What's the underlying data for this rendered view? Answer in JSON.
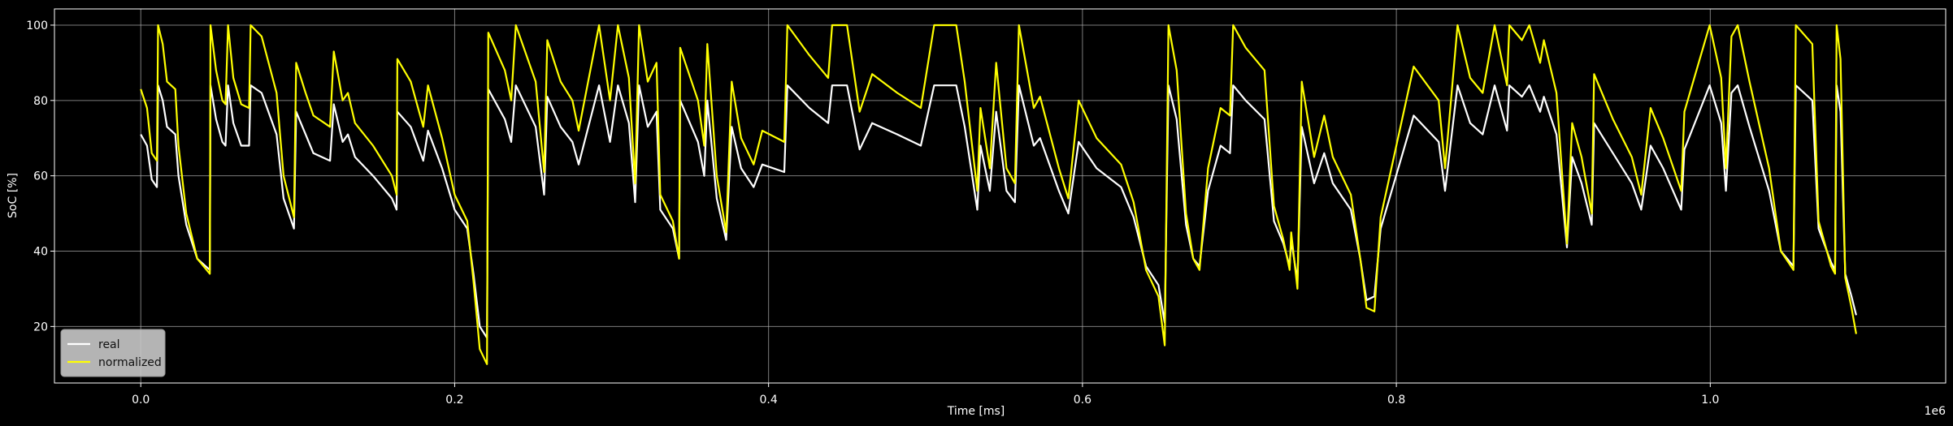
{
  "chart_data": {
    "type": "line",
    "x_label": "Time [ms]",
    "y_label": "SoC [%]",
    "x_offset_label": "1e6",
    "xlim": [
      -55000,
      1150000
    ],
    "ylim": [
      5,
      104.3
    ],
    "xticks": [
      {
        "value": 0,
        "label": "0.0"
      },
      {
        "value": 200000,
        "label": "0.2"
      },
      {
        "value": 400000,
        "label": "0.4"
      },
      {
        "value": 600000,
        "label": "0.6"
      },
      {
        "value": 800000,
        "label": "0.8"
      },
      {
        "value": 1000000,
        "label": "1.0"
      }
    ],
    "yticks": [
      20,
      40,
      60,
      80,
      100
    ],
    "grid": true,
    "legend": "lower left",
    "x": [
      0,
      4000,
      7000,
      10300,
      11000,
      14000,
      16700,
      22000,
      24000,
      29000,
      36000,
      44000,
      44400,
      48000,
      52000,
      54000,
      55600,
      59000,
      64000,
      69000,
      70000,
      77000,
      86500,
      91000,
      97600,
      99000,
      105000,
      110000,
      120600,
      123000,
      128600,
      132000,
      136500,
      148000,
      160000,
      163000,
      163500,
      172000,
      180000,
      183000,
      192000,
      200000,
      208000,
      212000,
      216000,
      220600,
      221400,
      232000,
      236000,
      239000,
      251600,
      257000,
      259000,
      267500,
      275000,
      279000,
      292000,
      299000,
      304000,
      311000,
      315000,
      317500,
      323000,
      328600,
      331000,
      339000,
      343000,
      343700,
      355000,
      359000,
      361000,
      367000,
      373000,
      376500,
      382500,
      390500,
      396000,
      410000,
      412000,
      426000,
      438000,
      440500,
      450000,
      458000,
      466000,
      482000,
      497000,
      505500,
      519600,
      525000,
      533000,
      535000,
      541000,
      545000,
      551600,
      557000,
      559500,
      569000,
      573000,
      585000,
      591000,
      597600,
      609000,
      624600,
      632600,
      640500,
      648400,
      652400,
      654800,
      660000,
      666000,
      670600,
      674600,
      680000,
      688000,
      694000,
      696000,
      704000,
      716000,
      722000,
      728000,
      732000,
      733000,
      737000,
      739700,
      747600,
      754000,
      759500,
      771000,
      777000,
      781000,
      786000,
      790000,
      811000,
      827000,
      831000,
      839000,
      847000,
      855000,
      862600,
      870500,
      872000,
      880000,
      884700,
      891600,
      894000,
      902000,
      908700,
      912000,
      918000,
      924500,
      926000,
      938000,
      950000,
      956000,
      962000,
      970000,
      981500,
      983500,
      999600,
      1007000,
      1010000,
      1013500,
      1017500,
      1025000,
      1037500,
      1045000,
      1053000,
      1054500,
      1065000,
      1069000,
      1077000,
      1079500,
      1080500,
      1083000,
      1086000,
      1090000,
      1093000
    ],
    "series": [
      {
        "name": "real",
        "color": "#ffffff",
        "values": [
          71,
          68,
          59,
          57,
          84,
          80,
          73,
          71,
          60,
          47,
          38,
          35,
          84,
          75,
          69,
          68,
          84,
          74,
          68,
          68,
          84,
          82,
          71,
          54,
          46,
          77,
          71,
          66,
          64,
          79,
          69,
          71,
          65,
          60,
          54,
          51,
          77,
          73,
          64,
          72,
          62,
          51,
          46,
          34,
          20,
          17,
          83,
          75,
          69,
          84,
          73,
          55,
          81,
          73,
          69,
          63,
          84,
          69,
          84,
          74,
          53,
          84,
          73,
          77,
          51,
          46,
          38,
          80,
          69,
          60,
          80,
          54,
          43,
          73,
          62,
          57,
          63,
          61,
          84,
          78,
          74,
          84,
          84,
          67,
          74,
          71,
          68,
          84,
          84,
          73,
          51,
          68,
          56,
          77,
          56,
          53,
          84,
          68,
          70,
          56,
          50,
          69,
          62,
          57,
          49,
          36,
          31,
          21,
          84,
          75,
          47,
          38,
          36,
          56,
          68,
          66,
          84,
          80,
          75,
          48,
          42,
          36,
          43,
          32,
          73,
          58,
          66,
          58,
          51,
          38,
          27,
          28,
          46,
          76,
          69,
          56,
          84,
          74,
          71,
          84,
          72,
          84,
          81,
          84,
          77,
          81,
          71,
          41,
          65,
          58,
          47,
          74,
          66,
          58,
          51,
          68,
          62,
          51,
          67,
          84,
          74,
          56,
          82,
          84,
          73,
          56,
          40,
          36,
          84,
          80,
          46,
          37,
          35,
          84,
          77,
          34,
          28,
          23
        ]
      },
      {
        "name": "normalized",
        "color": "#ffff00",
        "values": [
          83,
          78,
          66,
          64,
          100,
          95,
          85,
          83,
          68,
          50,
          38,
          34,
          100,
          88,
          80,
          79,
          100,
          86,
          79,
          78,
          100,
          97,
          82,
          60,
          49,
          90,
          82,
          76,
          73,
          93,
          80,
          82,
          74,
          68,
          60,
          55,
          91,
          85,
          73,
          84,
          70,
          55,
          48,
          32,
          14,
          10,
          98,
          88,
          80,
          100,
          85,
          61,
          96,
          85,
          80,
          72,
          100,
          80,
          100,
          86,
          58,
          100,
          85,
          90,
          55,
          48,
          38,
          94,
          80,
          68,
          95,
          60,
          45,
          85,
          70,
          63,
          72,
          69,
          100,
          92,
          86,
          100,
          100,
          77,
          87,
          82,
          78,
          100,
          100,
          85,
          56,
          78,
          62,
          90,
          62,
          58,
          100,
          78,
          81,
          62,
          54,
          80,
          70,
          63,
          53,
          35,
          28,
          15,
          100,
          88,
          50,
          38,
          35,
          62,
          78,
          76,
          100,
          94,
          88,
          52,
          43,
          35,
          45,
          30,
          85,
          65,
          76,
          65,
          55,
          38,
          25,
          24,
          49,
          89,
          80,
          62,
          100,
          86,
          82,
          100,
          84,
          100,
          96,
          100,
          90,
          96,
          82,
          42,
          74,
          65,
          50,
          87,
          75,
          65,
          55,
          78,
          70,
          56,
          77,
          100,
          86,
          62,
          97,
          100,
          85,
          62,
          40,
          35,
          100,
          95,
          48,
          36,
          34,
          100,
          91,
          33,
          25,
          18
        ]
      }
    ]
  }
}
